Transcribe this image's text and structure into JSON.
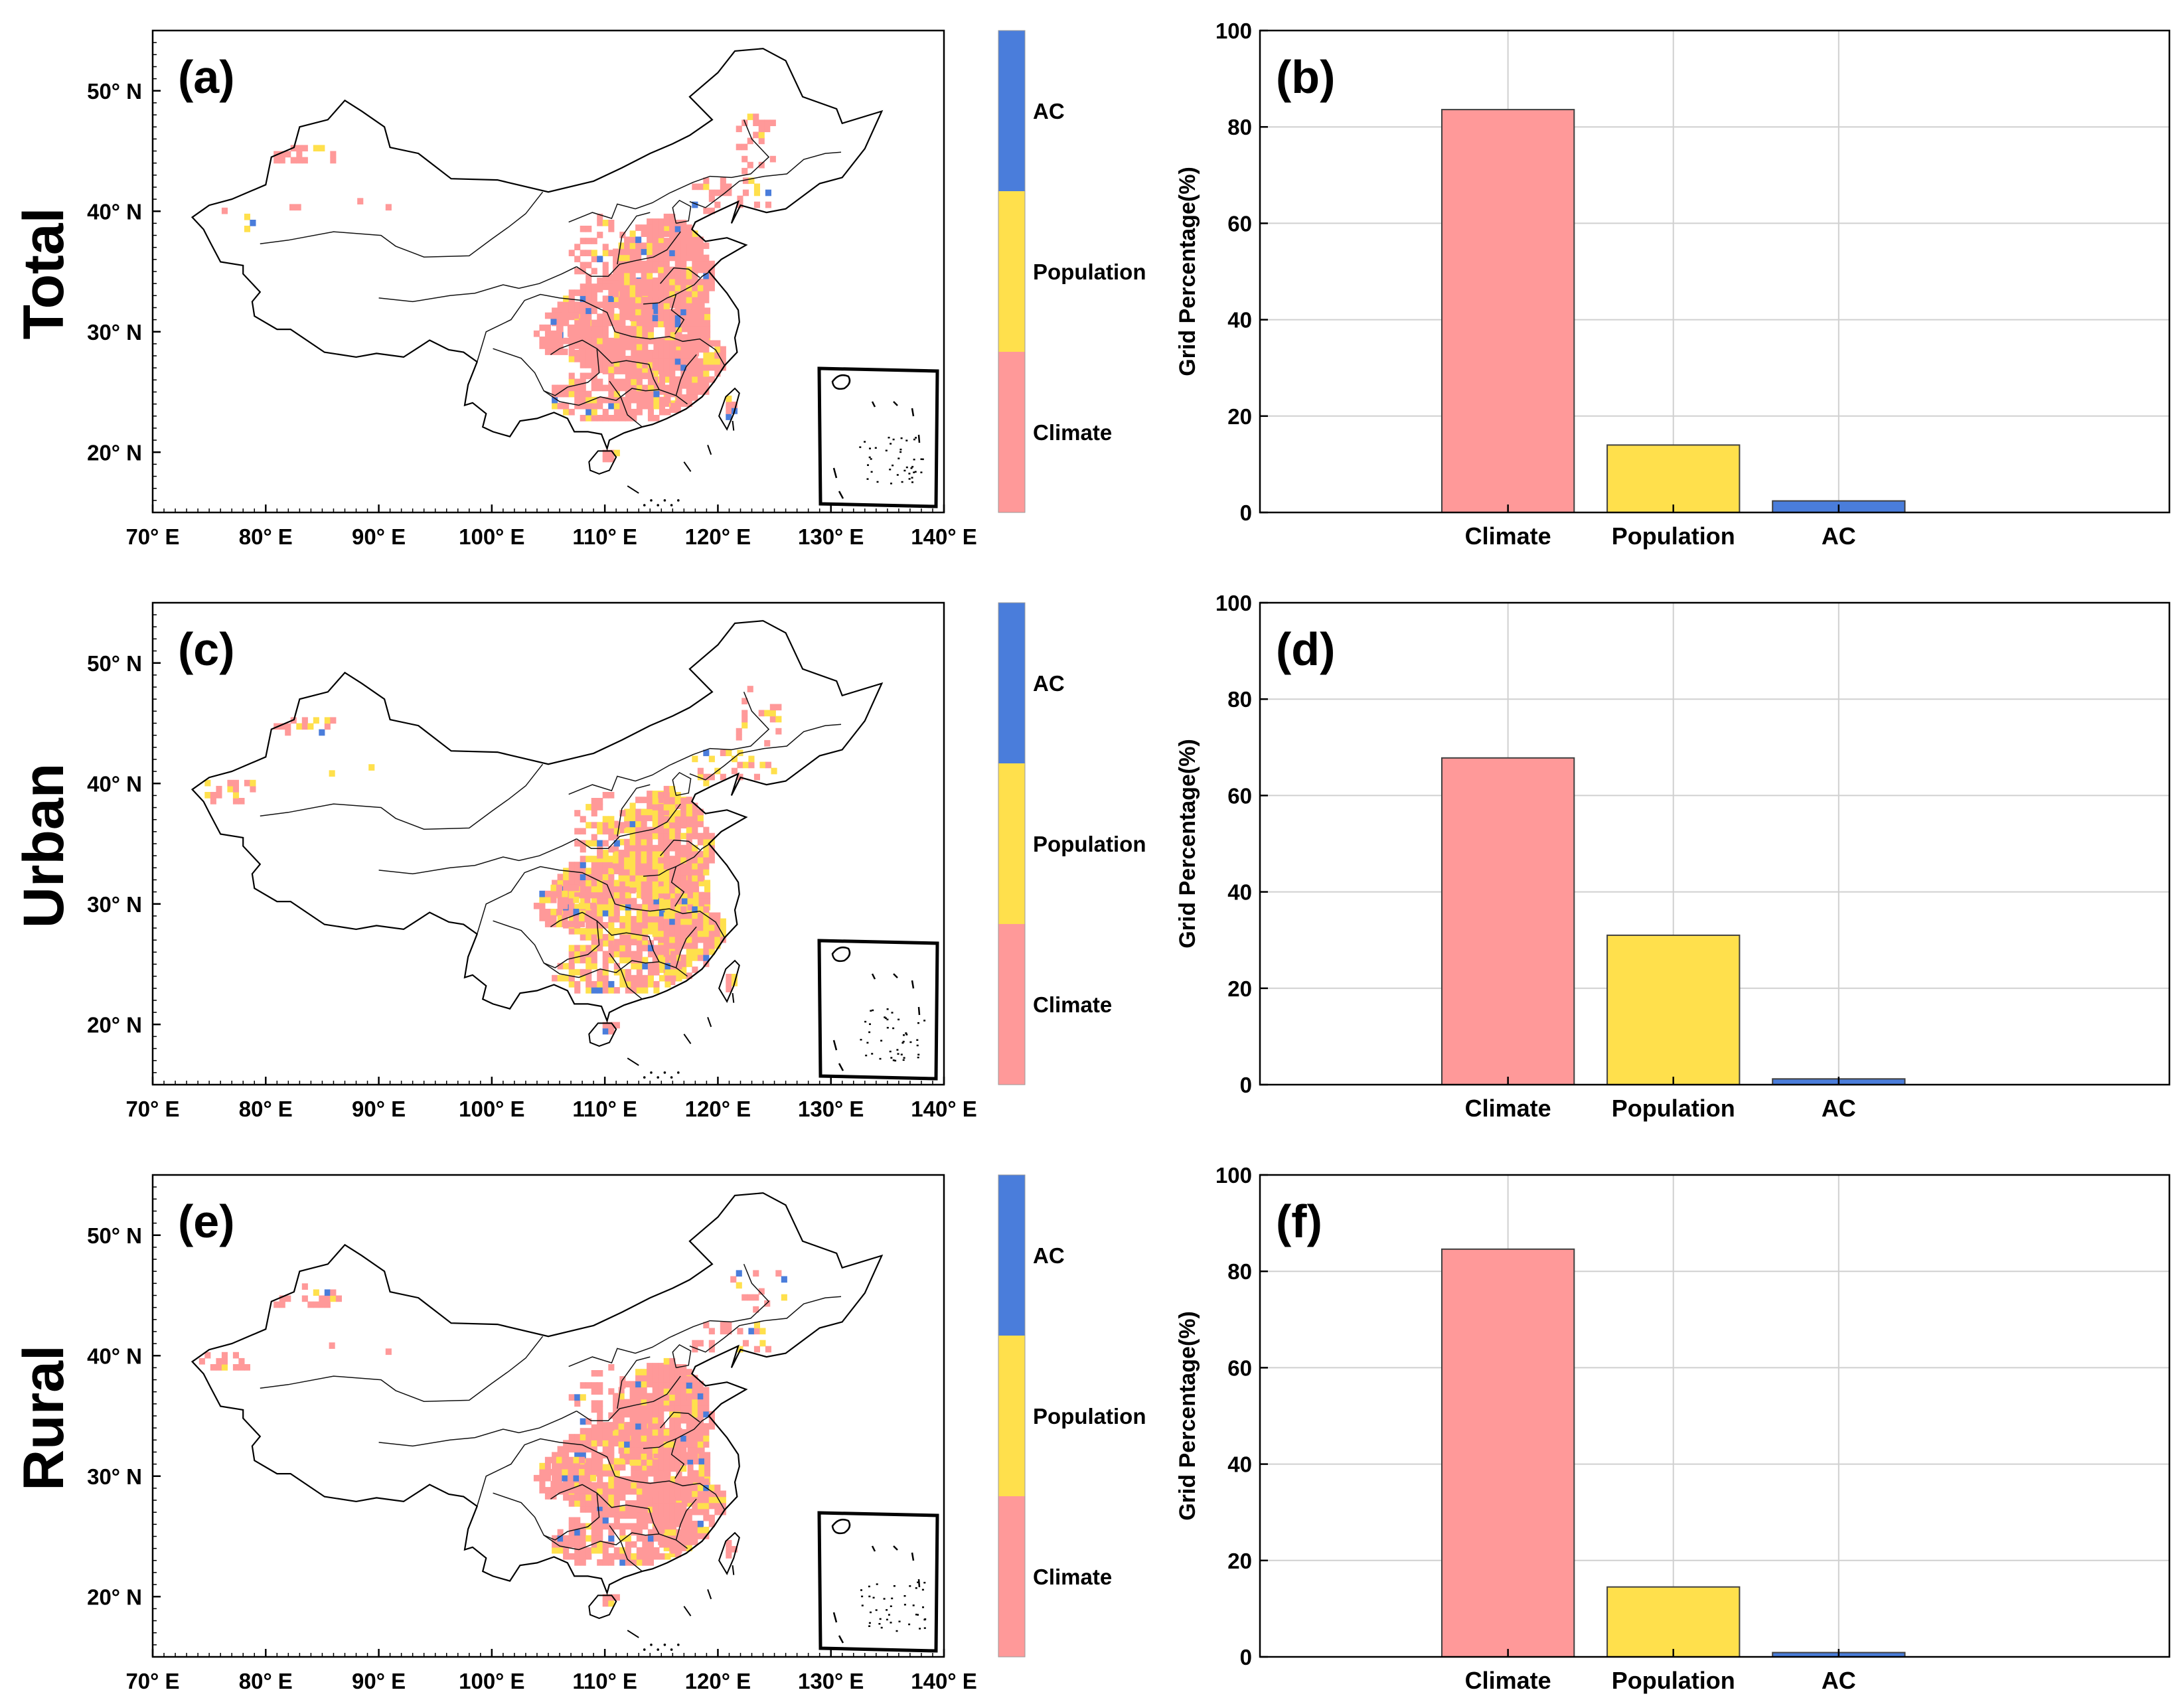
{
  "figure": {
    "rows": [
      {
        "row_label": "Total",
        "map": {
          "panel_label": "(a)",
          "climate_share": 0.86,
          "population_share": 0.1,
          "ac_share": 0.04
        },
        "bar": {
          "panel_label": "(b)"
        }
      },
      {
        "row_label": "Urban",
        "map": {
          "panel_label": "(c)",
          "climate_share": 0.62,
          "population_share": 0.35,
          "ac_share": 0.03
        },
        "bar": {
          "panel_label": "(d)"
        }
      },
      {
        "row_label": "Rural",
        "map": {
          "panel_label": "(e)",
          "climate_share": 0.85,
          "population_share": 0.13,
          "ac_share": 0.02
        },
        "bar": {
          "panel_label": "(f)"
        }
      }
    ],
    "map_axes": {
      "x_ticks": [
        "70° E",
        "80° E",
        "90° E",
        "100° E",
        "110° E",
        "120° E",
        "130° E",
        "140° E"
      ],
      "y_ticks": [
        "20° N",
        "30° N",
        "40° N",
        "50° N"
      ],
      "xlim": [
        70,
        140
      ],
      "ylim": [
        15,
        55
      ]
    },
    "legend": {
      "categories": [
        "AC",
        "Population",
        "Climate"
      ]
    }
  },
  "colors": {
    "Climate": "#ff9999",
    "Population": "#ffe04c",
    "AC": "#4a7ddb",
    "grid": "#d0d0d0",
    "edge": "#404040"
  },
  "chart_data": [
    {
      "type": "bar",
      "title": "(b)",
      "categories": [
        "Climate",
        "Population",
        "AC"
      ],
      "values": [
        83.6,
        14.0,
        2.4
      ],
      "xlabel": "",
      "ylabel": "Grid Percentage(%)",
      "ylim": [
        0,
        100
      ],
      "yticks": [
        0,
        20,
        40,
        60,
        80,
        100
      ],
      "grid": true
    },
    {
      "type": "bar",
      "title": "(d)",
      "categories": [
        "Climate",
        "Population",
        "AC"
      ],
      "values": [
        67.8,
        31.0,
        1.2
      ],
      "xlabel": "",
      "ylabel": "Grid Percentage(%)",
      "ylim": [
        0,
        100
      ],
      "yticks": [
        0,
        20,
        40,
        60,
        80,
        100
      ],
      "grid": true
    },
    {
      "type": "bar",
      "title": "(f)",
      "categories": [
        "Climate",
        "Population",
        "AC"
      ],
      "values": [
        84.6,
        14.5,
        0.9
      ],
      "xlabel": "",
      "ylabel": "Grid Percentage(%)",
      "ylim": [
        0,
        100
      ],
      "yticks": [
        0,
        20,
        40,
        60,
        80,
        100
      ],
      "grid": true
    }
  ]
}
